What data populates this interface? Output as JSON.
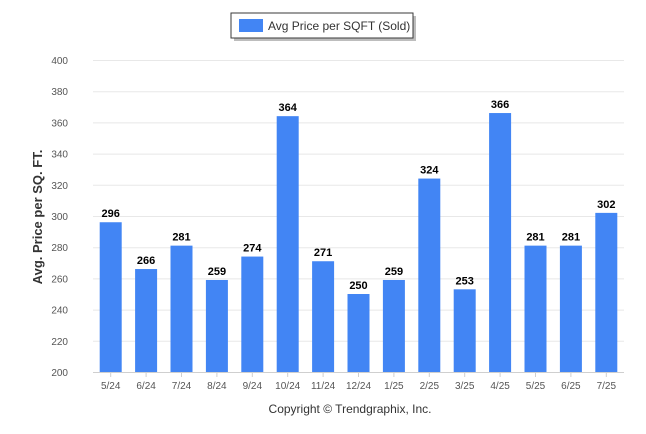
{
  "legend": {
    "label": "Avg Price per SQFT (Sold)"
  },
  "footer": {
    "copyright": "Copyright © Trendgraphix, Inc."
  },
  "chart_data": {
    "type": "bar",
    "ylabel": "Avg. Price per SQ. FT.",
    "ylim": [
      200,
      400
    ],
    "yticks": [
      200,
      220,
      240,
      260,
      280,
      300,
      320,
      340,
      360,
      380,
      400
    ],
    "grid": true,
    "legend_position": "top-center",
    "bar_color": "#4285f4",
    "categories": [
      "5/24",
      "6/24",
      "7/24",
      "8/24",
      "9/24",
      "10/24",
      "11/24",
      "12/24",
      "1/25",
      "2/25",
      "3/25",
      "4/25",
      "5/25",
      "6/25",
      "7/25"
    ],
    "series": [
      {
        "name": "Avg Price per SQFT (Sold)",
        "values": [
          296,
          266,
          281,
          259,
          274,
          364,
          271,
          250,
          259,
          324,
          253,
          366,
          281,
          281,
          302
        ]
      }
    ]
  }
}
